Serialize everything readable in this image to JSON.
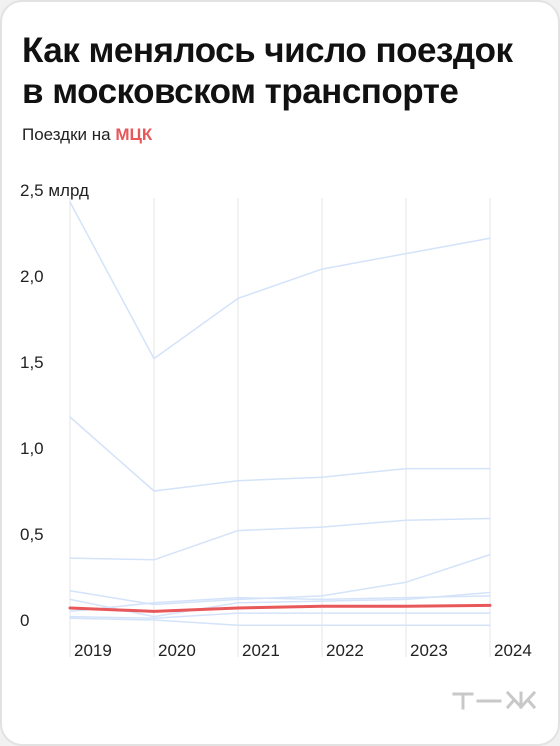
{
  "header": {
    "title": "Как менялось число поездок в московском транспорте",
    "subtitle_prefix": "Поездки на",
    "subtitle_highlight": "МЦК"
  },
  "colors": {
    "highlight": "#e8575a",
    "background_series": "#d4e3fa",
    "gridline": "#e6e6e6",
    "text": "#222222"
  },
  "chart_data": {
    "type": "line",
    "x": [
      "2019",
      "2020",
      "2021",
      "2022",
      "2023",
      "2024"
    ],
    "y_ticks": [
      "2,5 млрд",
      "2,0",
      "1,5",
      "1,0",
      "0,5",
      "0"
    ],
    "y_tick_values": [
      2.5,
      2.0,
      1.5,
      1.0,
      0.5,
      0
    ],
    "ylim": [
      0,
      2.5
    ],
    "grid": true,
    "highlighted_series": 0,
    "series": [
      {
        "values": [
          0.07,
          0.05,
          0.07,
          0.08,
          0.08,
          0.085
        ]
      },
      {
        "values": [
          2.43,
          1.52,
          1.87,
          2.04,
          2.13,
          2.22
        ]
      },
      {
        "values": [
          1.18,
          0.75,
          0.81,
          0.83,
          0.88,
          0.88
        ]
      },
      {
        "values": [
          0.36,
          0.35,
          0.52,
          0.54,
          0.58,
          0.59
        ]
      },
      {
        "values": [
          0.17,
          0.09,
          0.12,
          0.14,
          0.22,
          0.38
        ]
      },
      {
        "values": [
          0.12,
          0.02,
          0.1,
          0.11,
          0.12,
          0.16
        ]
      },
      {
        "values": [
          0.05,
          0.1,
          0.13,
          0.12,
          0.13,
          0.14
        ]
      },
      {
        "values": [
          0.02,
          0.01,
          0.04,
          0.04,
          0.04,
          0.04
        ]
      },
      {
        "values": [
          0.01,
          0.0,
          -0.03,
          -0.03,
          -0.03,
          -0.03
        ]
      }
    ]
  }
}
